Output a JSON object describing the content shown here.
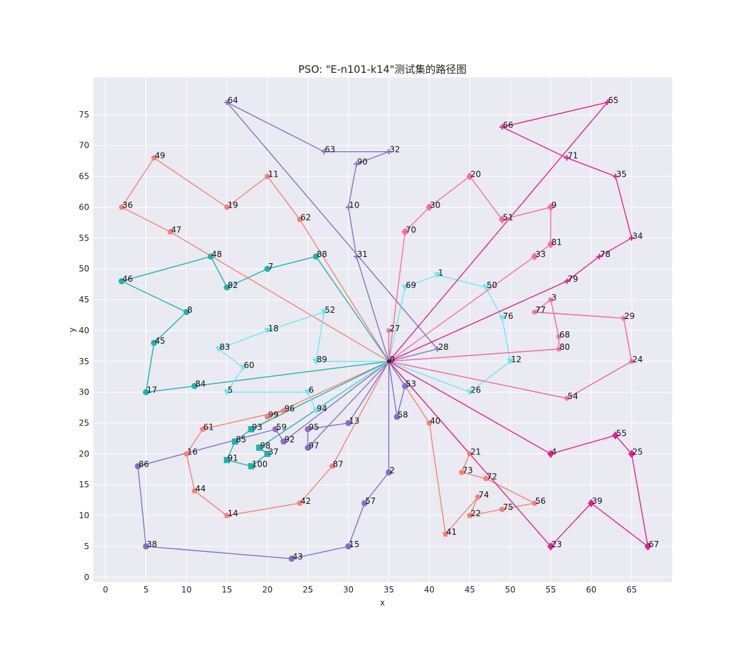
{
  "chart_data": {
    "type": "line",
    "title": "PSO: \"E-n101-k14\"测试集的路径图",
    "xlabel": "x",
    "ylabel": "y",
    "xlim": [
      -1.5,
      70
    ],
    "ylim": [
      -0.8,
      81
    ],
    "xticks": [
      0,
      5,
      10,
      15,
      20,
      25,
      30,
      35,
      40,
      45,
      50,
      55,
      60,
      65
    ],
    "yticks": [
      0,
      5,
      10,
      15,
      20,
      25,
      30,
      35,
      40,
      45,
      50,
      55,
      60,
      65,
      70,
      75
    ],
    "grid": true,
    "depot": {
      "id": 0,
      "x": 35,
      "y": 35
    },
    "nodes": [
      [
        1,
        41,
        49
      ],
      [
        2,
        35,
        17
      ],
      [
        3,
        55,
        45
      ],
      [
        4,
        55,
        20
      ],
      [
        5,
        15,
        30
      ],
      [
        6,
        25,
        30
      ],
      [
        7,
        20,
        50
      ],
      [
        8,
        10,
        43
      ],
      [
        9,
        55,
        60
      ],
      [
        10,
        30,
        60
      ],
      [
        11,
        20,
        65
      ],
      [
        12,
        50,
        35
      ],
      [
        13,
        30,
        25
      ],
      [
        14,
        15,
        10
      ],
      [
        15,
        30,
        5
      ],
      [
        16,
        10,
        20
      ],
      [
        17,
        5,
        30
      ],
      [
        18,
        20,
        40
      ],
      [
        19,
        15,
        60
      ],
      [
        20,
        45,
        65
      ],
      [
        21,
        45,
        20
      ],
      [
        22,
        45,
        10
      ],
      [
        23,
        55,
        5
      ],
      [
        24,
        65,
        35
      ],
      [
        25,
        65,
        20
      ],
      [
        26,
        45,
        30
      ],
      [
        27,
        35,
        40
      ],
      [
        28,
        41,
        37
      ],
      [
        29,
        64,
        42
      ],
      [
        30,
        40,
        60
      ],
      [
        31,
        31,
        52
      ],
      [
        32,
        35,
        69
      ],
      [
        33,
        53,
        52
      ],
      [
        34,
        65,
        55
      ],
      [
        35,
        63,
        65
      ],
      [
        36,
        2,
        60
      ],
      [
        37,
        20,
        20
      ],
      [
        38,
        5,
        5
      ],
      [
        39,
        60,
        12
      ],
      [
        40,
        40,
        25
      ],
      [
        41,
        42,
        7
      ],
      [
        42,
        24,
        12
      ],
      [
        43,
        23,
        3
      ],
      [
        44,
        11,
        14
      ],
      [
        45,
        6,
        38
      ],
      [
        46,
        2,
        48
      ],
      [
        47,
        8,
        56
      ],
      [
        48,
        13,
        52
      ],
      [
        49,
        6,
        68
      ],
      [
        50,
        47,
        47
      ],
      [
        51,
        49,
        58
      ],
      [
        52,
        27,
        43
      ],
      [
        53,
        37,
        31
      ],
      [
        54,
        57,
        29
      ],
      [
        55,
        63,
        23
      ],
      [
        56,
        53,
        12
      ],
      [
        57,
        32,
        12
      ],
      [
        58,
        36,
        26
      ],
      [
        59,
        21,
        24
      ],
      [
        60,
        17,
        34
      ],
      [
        61,
        12,
        24
      ],
      [
        62,
        24,
        58
      ],
      [
        63,
        27,
        69
      ],
      [
        64,
        15,
        77
      ],
      [
        65,
        62,
        77
      ],
      [
        66,
        49,
        73
      ],
      [
        67,
        67,
        5
      ],
      [
        68,
        56,
        39
      ],
      [
        69,
        37,
        47
      ],
      [
        70,
        37,
        56
      ],
      [
        71,
        57,
        68
      ],
      [
        72,
        47,
        16
      ],
      [
        73,
        44,
        17
      ],
      [
        74,
        46,
        13
      ],
      [
        75,
        49,
        11
      ],
      [
        76,
        49,
        42
      ],
      [
        77,
        53,
        43
      ],
      [
        78,
        61,
        52
      ],
      [
        79,
        57,
        48
      ],
      [
        80,
        56,
        37
      ],
      [
        81,
        55,
        54
      ],
      [
        82,
        15,
        47
      ],
      [
        83,
        14,
        37
      ],
      [
        84,
        11,
        31
      ],
      [
        85,
        16,
        22
      ],
      [
        86,
        4,
        18
      ],
      [
        87,
        28,
        18
      ],
      [
        88,
        26,
        52
      ],
      [
        89,
        26,
        35
      ],
      [
        90,
        31,
        67
      ],
      [
        91,
        15,
        19
      ],
      [
        92,
        22,
        22
      ],
      [
        93,
        18,
        24
      ],
      [
        94,
        26,
        27
      ],
      [
        95,
        25,
        24
      ],
      [
        96,
        22,
        27
      ],
      [
        97,
        25,
        21
      ],
      [
        98,
        19,
        21
      ],
      [
        99,
        20,
        26
      ],
      [
        100,
        18,
        18
      ]
    ],
    "series": [
      {
        "color": "#fa8072",
        "marker": "pentagon",
        "routes": [
          [
            0,
            62,
            11,
            19,
            49,
            36,
            47,
            0
          ],
          [
            0,
            21,
            73,
            72,
            56,
            75,
            22,
            74,
            41,
            40,
            0
          ],
          [
            0,
            87,
            42,
            14,
            44,
            16,
            61,
            96,
            99,
            0
          ]
        ]
      },
      {
        "color": "#20b2aa",
        "marker": "circle",
        "routes": [
          [
            0,
            88,
            7,
            82,
            48,
            46,
            8,
            45,
            17,
            84,
            0
          ]
        ]
      },
      {
        "color": "#20b2aa",
        "marker": "square",
        "routes": [
          [
            0,
            93,
            85,
            91,
            100,
            37,
            98,
            0
          ]
        ]
      },
      {
        "color": "#8470c8",
        "marker": "plus",
        "routes": [
          [
            0,
            31,
            10,
            90,
            32,
            63,
            64,
            28,
            0
          ]
        ]
      },
      {
        "color": "#8470c8",
        "marker": "circle",
        "routes": [
          [
            0,
            2,
            57,
            15,
            43,
            38,
            86,
            59,
            92,
            0
          ],
          [
            0,
            53,
            58,
            0
          ],
          [
            0,
            13,
            95,
            97,
            0
          ]
        ]
      },
      {
        "color": "#6ee6f0",
        "marker": "tri",
        "routes": [
          [
            0,
            26,
            12,
            76,
            50,
            1,
            69,
            0
          ],
          [
            0,
            89,
            52,
            18,
            83,
            60,
            5,
            6,
            94,
            0
          ]
        ]
      },
      {
        "color": "#ff69a0",
        "marker": "diamond",
        "routes": [
          [
            0,
            70,
            30,
            20,
            51,
            9,
            81,
            33,
            0
          ]
        ]
      },
      {
        "color": "#f06496",
        "marker": "star",
        "routes": [
          [
            0,
            54,
            24,
            29,
            77,
            3,
            68,
            80,
            0
          ],
          [
            0,
            27,
            0
          ]
        ]
      },
      {
        "color": "#e6208c",
        "marker": "plus",
        "routes": [
          [
            0,
            65,
            66,
            71,
            35,
            34,
            78,
            79,
            0
          ]
        ]
      },
      {
        "color": "#e6208c",
        "marker": "diamond",
        "routes": [
          [
            0,
            4,
            55,
            25,
            67,
            39,
            23,
            0
          ]
        ]
      }
    ]
  }
}
